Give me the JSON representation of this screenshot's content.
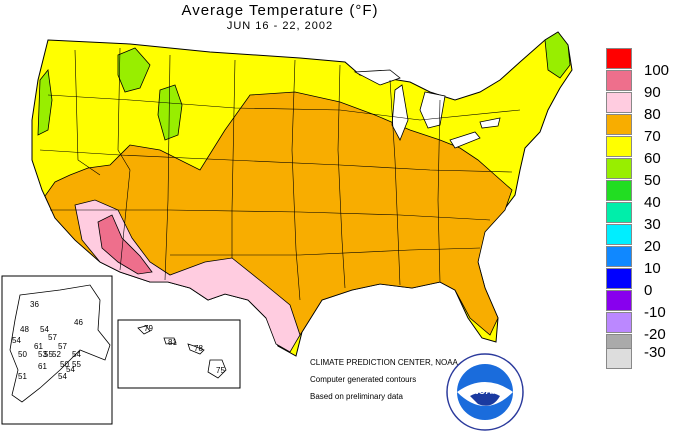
{
  "header": {
    "title": "Average Temperature (°F)",
    "subtitle": "JUN 16 - 22, 2002"
  },
  "legend": {
    "items": [
      {
        "label": "100",
        "color": "#ff0000"
      },
      {
        "label": "90",
        "color": "#ee6f8c"
      },
      {
        "label": "80",
        "color": "#ffcce0"
      },
      {
        "label": "70",
        "color": "#f8ad00"
      },
      {
        "label": "60",
        "color": "#ffff00"
      },
      {
        "label": "50",
        "color": "#98ee00"
      },
      {
        "label": "40",
        "color": "#22dd22"
      },
      {
        "label": "30",
        "color": "#00eeaa"
      },
      {
        "label": "20",
        "color": "#00eeff"
      },
      {
        "label": "10",
        "color": "#1088ff"
      },
      {
        "label": "0",
        "color": "#0000ff"
      },
      {
        "label": "-10",
        "color": "#8800ee"
      },
      {
        "label": "-20",
        "color": "#bb88ff"
      },
      {
        "label": "-30",
        "color": "#aaaaaa"
      },
      {
        "label": "",
        "color": "#dddddd"
      }
    ]
  },
  "alaska_stations": [
    "36",
    "46",
    "48",
    "54",
    "57",
    "54",
    "61",
    "50",
    "57",
    "53",
    "55",
    "52",
    "54",
    "61",
    "50",
    "54",
    "55",
    "51",
    "54"
  ],
  "hawaii_stations": [
    "79",
    "81",
    "78",
    "75"
  ],
  "credits": {
    "center": "CLIMATE PREDICTION CENTER, NOAA",
    "line2": "Computer generated contours",
    "line3": "Based on preliminary data"
  },
  "logo": {
    "text": "NOAA"
  }
}
